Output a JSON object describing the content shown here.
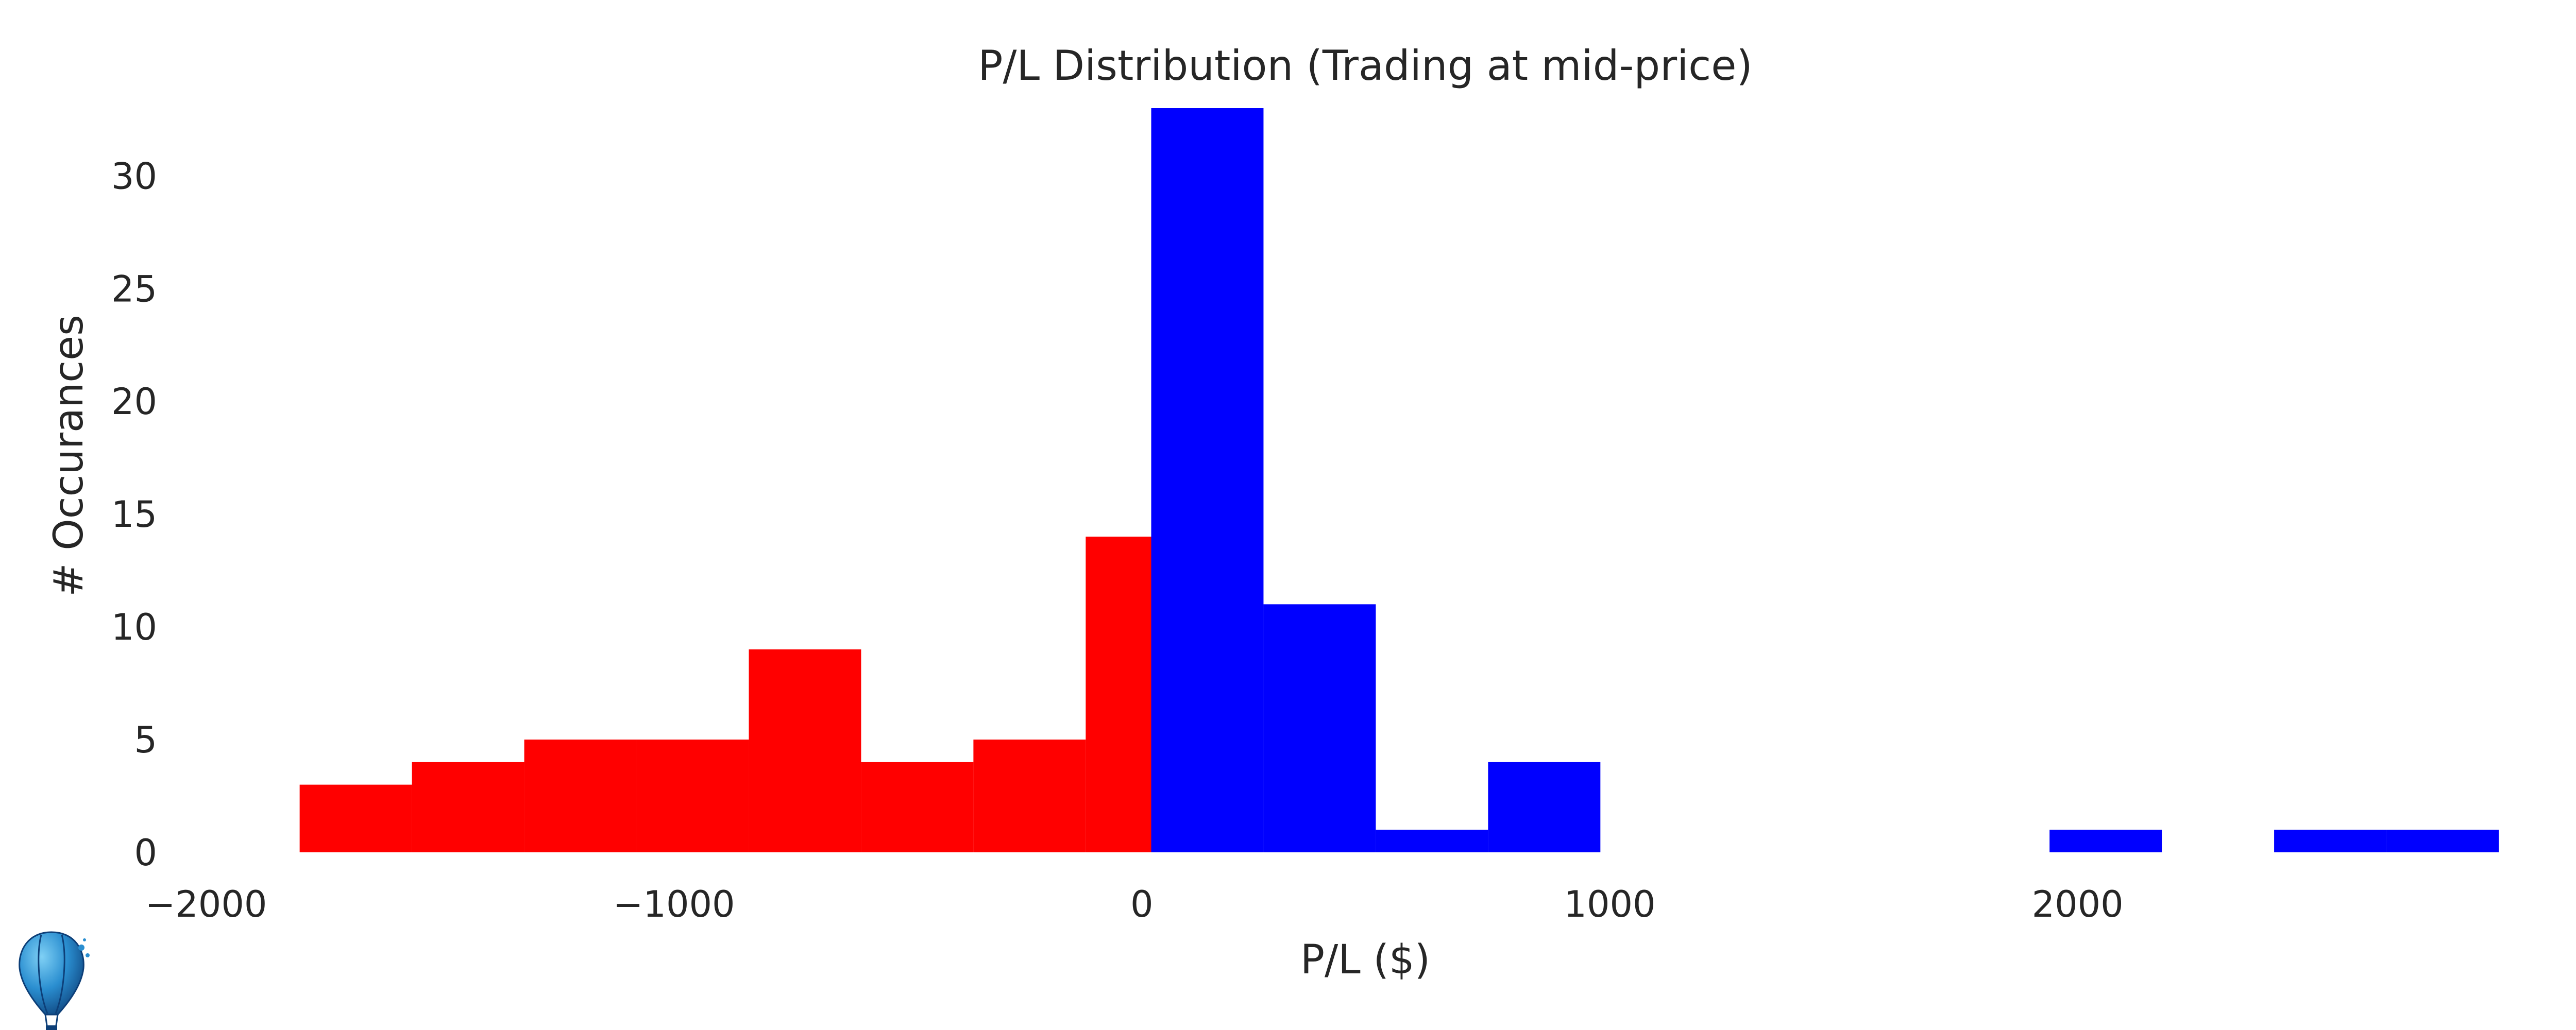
{
  "chart_data": {
    "type": "bar",
    "title": "P/L Distribution (Trading at mid-price)",
    "xlabel": "P/L ($)",
    "ylabel": "# Occurances",
    "xlim": [
      -2000,
      2900
    ],
    "ylim": [
      0,
      33
    ],
    "xticks": [
      {
        "value": -2000,
        "label": "−2000"
      },
      {
        "value": -1000,
        "label": "−1000"
      },
      {
        "value": 0,
        "label": "0"
      },
      {
        "value": 1000,
        "label": "1000"
      },
      {
        "value": 2000,
        "label": "2000"
      }
    ],
    "yticks": [
      {
        "value": 0,
        "label": "0"
      },
      {
        "value": 5,
        "label": "5"
      },
      {
        "value": 10,
        "label": "10"
      },
      {
        "value": 15,
        "label": "15"
      },
      {
        "value": 20,
        "label": "20"
      },
      {
        "value": 25,
        "label": "25"
      },
      {
        "value": 30,
        "label": "30"
      }
    ],
    "grid": false,
    "bins": [
      {
        "x0": -1800,
        "x1": -1560,
        "count": 3,
        "color": "#ff0000"
      },
      {
        "x0": -1560,
        "x1": -1320,
        "count": 4,
        "color": "#ff0000"
      },
      {
        "x0": -1320,
        "x1": -1080,
        "count": 5,
        "color": "#ff0000"
      },
      {
        "x0": -1080,
        "x1": -840,
        "count": 5,
        "color": "#ff0000"
      },
      {
        "x0": -840,
        "x1": -600,
        "count": 9,
        "color": "#ff0000"
      },
      {
        "x0": -600,
        "x1": -360,
        "count": 4,
        "color": "#ff0000"
      },
      {
        "x0": -360,
        "x1": -120,
        "count": 5,
        "color": "#ff0000"
      },
      {
        "x0": -120,
        "x1": 20,
        "count": 14,
        "color": "#ff0000"
      },
      {
        "x0": 20,
        "x1": 260,
        "count": 33,
        "color": "#0000ff"
      },
      {
        "x0": 260,
        "x1": 500,
        "count": 11,
        "color": "#0000ff"
      },
      {
        "x0": 500,
        "x1": 740,
        "count": 1,
        "color": "#0000ff"
      },
      {
        "x0": 740,
        "x1": 980,
        "count": 4,
        "color": "#0000ff"
      },
      {
        "x0": 980,
        "x1": 1220,
        "count": 0,
        "color": "#0000ff"
      },
      {
        "x0": 1220,
        "x1": 1460,
        "count": 0,
        "color": "#0000ff"
      },
      {
        "x0": 1460,
        "x1": 1700,
        "count": 0,
        "color": "#0000ff"
      },
      {
        "x0": 1700,
        "x1": 1940,
        "count": 0,
        "color": "#0000ff"
      },
      {
        "x0": 1940,
        "x1": 2180,
        "count": 1,
        "color": "#0000ff"
      },
      {
        "x0": 2180,
        "x1": 2420,
        "count": 0,
        "color": "#0000ff"
      },
      {
        "x0": 2420,
        "x1": 2660,
        "count": 1,
        "color": "#0000ff"
      },
      {
        "x0": 2660,
        "x1": 2900,
        "count": 1,
        "color": "#0000ff"
      }
    ],
    "colors": {
      "loss": "#ff0000",
      "profit": "#0000ff"
    }
  },
  "logo": {
    "icon": "hot-air-balloon-icon"
  }
}
